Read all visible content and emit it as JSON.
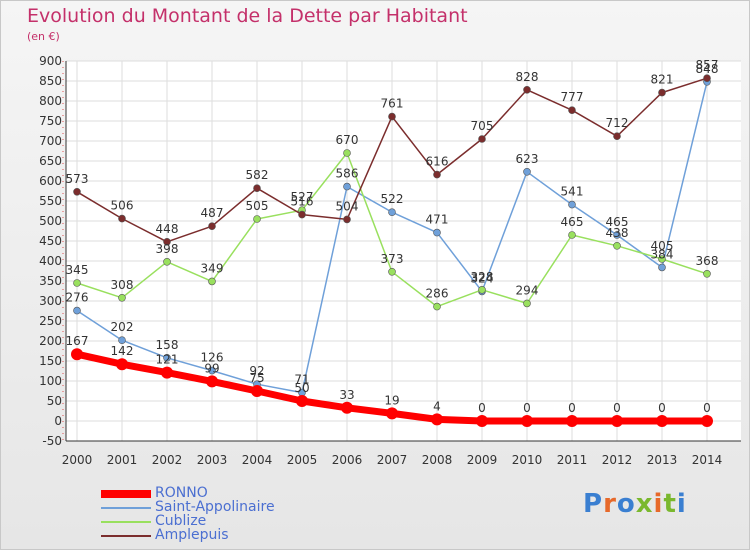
{
  "title": "Evolution du Montant de la Dette par Habitant",
  "subtitle": "(en €)",
  "logo": {
    "text": "Proxiti"
  },
  "legend": {
    "items": [
      {
        "label": "RONNO",
        "color": "#ff0000"
      },
      {
        "label": "Saint-Appolinaire",
        "color": "#6fa0d9"
      },
      {
        "label": "Cublize",
        "color": "#99e05e"
      },
      {
        "label": "Amplepuis",
        "color": "#7b2d2d"
      }
    ]
  },
  "chart_data": {
    "type": "line",
    "x": [
      "2000",
      "2001",
      "2002",
      "2003",
      "2004",
      "2005",
      "2006",
      "2007",
      "2008",
      "2009",
      "2010",
      "2011",
      "2012",
      "2013",
      "2014"
    ],
    "ylim": [
      -50,
      900
    ],
    "yticks": [
      -50,
      0,
      50,
      100,
      150,
      200,
      250,
      300,
      350,
      400,
      450,
      500,
      550,
      600,
      650,
      700,
      750,
      800,
      850,
      900
    ],
    "grid": true,
    "legend_position": "bottom-left",
    "series": [
      {
        "name": "RONNO",
        "color": "#ff0000",
        "values": [
          167,
          142,
          121,
          99,
          75,
          50,
          33,
          19,
          4,
          0,
          0,
          0,
          0,
          0,
          0
        ]
      },
      {
        "name": "Saint-Appolinaire",
        "color": "#6fa0d9",
        "values": [
          276,
          202,
          158,
          126,
          92,
          71,
          586,
          522,
          471,
          324,
          623,
          541,
          465,
          384,
          848
        ]
      },
      {
        "name": "Cublize",
        "color": "#99e05e",
        "values": [
          345,
          308,
          398,
          349,
          505,
          527,
          670,
          373,
          286,
          328,
          294,
          465,
          438,
          405,
          368
        ]
      },
      {
        "name": "Amplepuis",
        "color": "#7b2d2d",
        "values": [
          573,
          506,
          448,
          487,
          582,
          516,
          504,
          761,
          616,
          705,
          828,
          777,
          712,
          821,
          857
        ]
      }
    ]
  }
}
